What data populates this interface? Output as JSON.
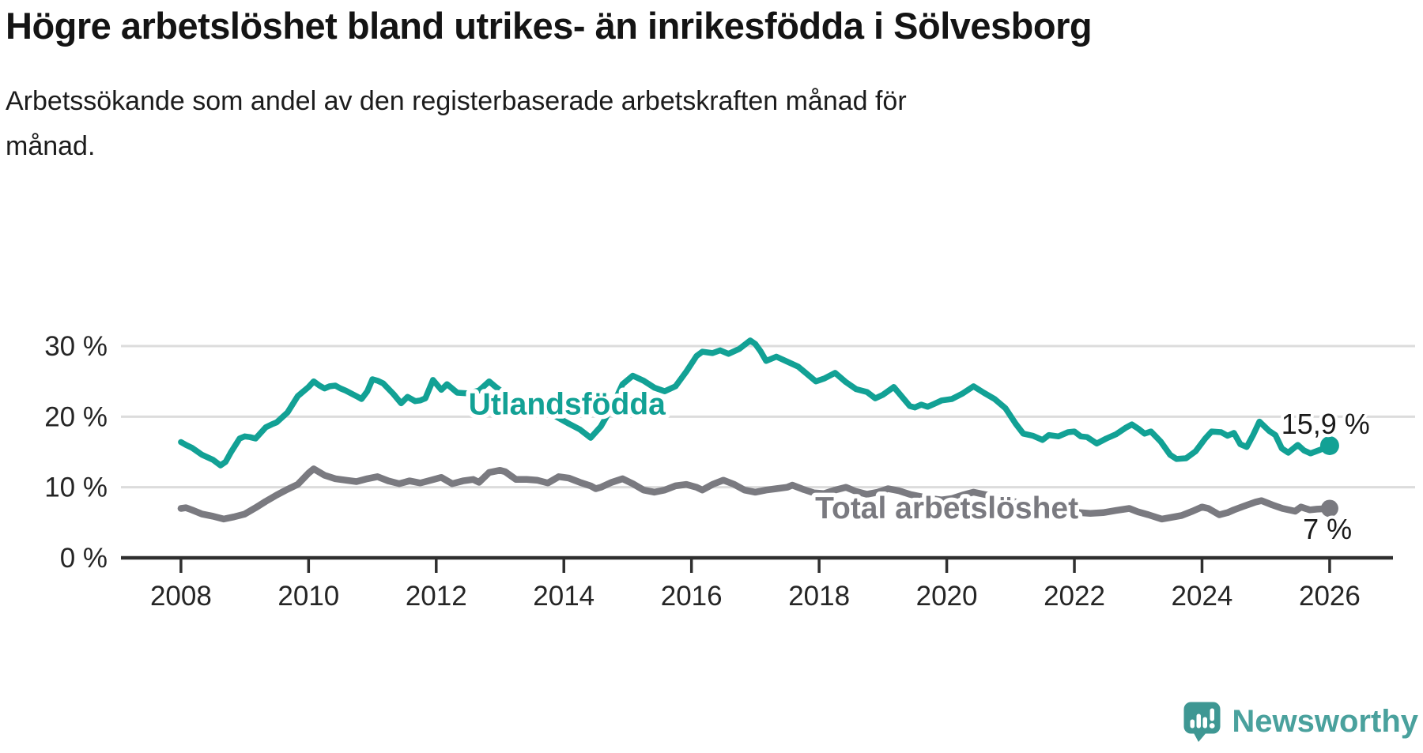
{
  "header": {
    "title": "Högre arbetslöshet bland utrikes- än inrikesfödda i Sölvesborg",
    "subtitle": "Arbetssökande som andel av den registerbaserade arbetskraften månad för månad."
  },
  "footer": {
    "brand": "Newsworthy"
  },
  "chart_data": {
    "type": "line",
    "title": "Högre arbetslöshet bland utrikes- än inrikesfödda i Sölvesborg",
    "subtitle": "Arbetssökande som andel av den registerbaserade arbetskraften månad för månad.",
    "unit": "%",
    "grid": true,
    "legend_position": "inline-labels",
    "xlim": [
      2007.06,
      2026.93
    ],
    "ylim": [
      0,
      30
    ],
    "grid_color": "#dcdcdc",
    "axis_color": "#2f2f2f",
    "tick_label_color": "#252525",
    "xticks": [
      {
        "year": 2008,
        "label": "2008"
      },
      {
        "year": 2010,
        "label": "2010"
      },
      {
        "year": 2012,
        "label": "2012"
      },
      {
        "year": 2014,
        "label": "2014"
      },
      {
        "year": 2016,
        "label": "2016"
      },
      {
        "year": 2018,
        "label": "2018"
      },
      {
        "year": 2020,
        "label": "2020"
      },
      {
        "year": 2022,
        "label": "2022"
      },
      {
        "year": 2024,
        "label": "2024"
      },
      {
        "year": 2026,
        "label": "2026"
      }
    ],
    "yticks": [
      {
        "value": 0,
        "label": "0 %"
      },
      {
        "value": 10,
        "label": "10 %"
      },
      {
        "value": 20,
        "label": "20 %"
      },
      {
        "value": 30,
        "label": "30 %"
      }
    ],
    "series": [
      {
        "id": "total-arbetsloshet",
        "name": "Total arbetslöshet",
        "color": "#7a7a80",
        "line_width": 8.5,
        "dot_radius": 11,
        "last_value_label": "7 %",
        "label": {
          "text": "Total arbetslöshet",
          "x": 2020.0,
          "y": 5.6,
          "anchor": "middle"
        },
        "end_label": {
          "text": "7 %",
          "x": 2026.35,
          "y": 2.7,
          "anchor": "end"
        },
        "points": [
          [
            2008.0,
            7.0
          ],
          [
            2008.08,
            7.1
          ],
          [
            2008.17,
            6.8
          ],
          [
            2008.33,
            6.2
          ],
          [
            2008.5,
            5.9
          ],
          [
            2008.67,
            5.5
          ],
          [
            2008.83,
            5.8
          ],
          [
            2009.0,
            6.2
          ],
          [
            2009.17,
            7.1
          ],
          [
            2009.33,
            8.0
          ],
          [
            2009.5,
            8.9
          ],
          [
            2009.67,
            9.7
          ],
          [
            2009.83,
            10.4
          ],
          [
            2010.0,
            12.0
          ],
          [
            2010.08,
            12.6
          ],
          [
            2010.25,
            11.7
          ],
          [
            2010.42,
            11.2
          ],
          [
            2010.58,
            11.0
          ],
          [
            2010.75,
            10.8
          ],
          [
            2010.92,
            11.2
          ],
          [
            2011.08,
            11.5
          ],
          [
            2011.25,
            10.9
          ],
          [
            2011.42,
            10.5
          ],
          [
            2011.58,
            10.9
          ],
          [
            2011.75,
            10.6
          ],
          [
            2011.92,
            11.0
          ],
          [
            2012.08,
            11.4
          ],
          [
            2012.25,
            10.5
          ],
          [
            2012.42,
            10.9
          ],
          [
            2012.58,
            11.1
          ],
          [
            2012.67,
            10.7
          ],
          [
            2012.83,
            12.1
          ],
          [
            2013.0,
            12.4
          ],
          [
            2013.08,
            12.2
          ],
          [
            2013.25,
            11.1
          ],
          [
            2013.42,
            11.1
          ],
          [
            2013.58,
            11.0
          ],
          [
            2013.75,
            10.6
          ],
          [
            2013.92,
            11.5
          ],
          [
            2014.08,
            11.3
          ],
          [
            2014.25,
            10.7
          ],
          [
            2014.42,
            10.2
          ],
          [
            2014.5,
            9.8
          ],
          [
            2014.58,
            10.0
          ],
          [
            2014.75,
            10.7
          ],
          [
            2014.92,
            11.2
          ],
          [
            2015.08,
            10.5
          ],
          [
            2015.25,
            9.6
          ],
          [
            2015.42,
            9.3
          ],
          [
            2015.58,
            9.6
          ],
          [
            2015.75,
            10.2
          ],
          [
            2015.92,
            10.4
          ],
          [
            2016.08,
            10.0
          ],
          [
            2016.17,
            9.6
          ],
          [
            2016.33,
            10.4
          ],
          [
            2016.5,
            11.0
          ],
          [
            2016.67,
            10.4
          ],
          [
            2016.83,
            9.6
          ],
          [
            2017.0,
            9.3
          ],
          [
            2017.17,
            9.6
          ],
          [
            2017.33,
            9.8
          ],
          [
            2017.5,
            10.0
          ],
          [
            2017.58,
            10.3
          ],
          [
            2017.75,
            9.7
          ],
          [
            2017.92,
            9.2
          ],
          [
            2018.08,
            9.1
          ],
          [
            2018.25,
            9.6
          ],
          [
            2018.42,
            10.0
          ],
          [
            2018.58,
            9.4
          ],
          [
            2018.75,
            9.0
          ],
          [
            2018.92,
            9.3
          ],
          [
            2019.08,
            9.8
          ],
          [
            2019.25,
            9.5
          ],
          [
            2019.42,
            9.0
          ],
          [
            2019.58,
            8.7
          ],
          [
            2019.75,
            8.4
          ],
          [
            2019.92,
            8.2
          ],
          [
            2020.08,
            8.4
          ],
          [
            2020.25,
            8.9
          ],
          [
            2020.42,
            9.3
          ],
          [
            2020.58,
            9.0
          ],
          [
            2020.75,
            8.7
          ],
          [
            2020.92,
            8.4
          ],
          [
            2021.08,
            7.9
          ],
          [
            2021.25,
            7.5
          ],
          [
            2021.42,
            7.1
          ],
          [
            2021.58,
            6.9
          ],
          [
            2021.75,
            6.7
          ],
          [
            2021.92,
            6.6
          ],
          [
            2022.08,
            6.4
          ],
          [
            2022.25,
            6.3
          ],
          [
            2022.45,
            6.4
          ],
          [
            2022.65,
            6.7
          ],
          [
            2022.86,
            7.0
          ],
          [
            2023.0,
            6.5
          ],
          [
            2023.16,
            6.1
          ],
          [
            2023.37,
            5.5
          ],
          [
            2023.5,
            5.7
          ],
          [
            2023.68,
            6.0
          ],
          [
            2023.85,
            6.6
          ],
          [
            2024.0,
            7.2
          ],
          [
            2024.1,
            7.0
          ],
          [
            2024.27,
            6.1
          ],
          [
            2024.4,
            6.4
          ],
          [
            2024.5,
            6.8
          ],
          [
            2024.65,
            7.3
          ],
          [
            2024.84,
            7.9
          ],
          [
            2024.93,
            8.1
          ],
          [
            2025.1,
            7.5
          ],
          [
            2025.26,
            7.0
          ],
          [
            2025.46,
            6.6
          ],
          [
            2025.55,
            7.2
          ],
          [
            2025.69,
            6.8
          ],
          [
            2025.8,
            6.9
          ],
          [
            2026.0,
            7.0
          ]
        ]
      },
      {
        "id": "utlandsfodda",
        "name": "Utlandsfödda",
        "color": "#12a195",
        "line_width": 7.5,
        "dot_radius": 12,
        "last_value_label": "15,9 %",
        "label": {
          "text": "Utlandsfödda",
          "x": 2014.05,
          "y": 20.3,
          "anchor": "middle"
        },
        "end_label": {
          "text": "15,9 %",
          "x": 2026.63,
          "y": 17.6,
          "anchor": "end"
        },
        "points": [
          [
            2008.0,
            16.4
          ],
          [
            2008.08,
            16.0
          ],
          [
            2008.17,
            15.6
          ],
          [
            2008.33,
            14.6
          ],
          [
            2008.5,
            13.9
          ],
          [
            2008.62,
            13.1
          ],
          [
            2008.7,
            13.6
          ],
          [
            2008.78,
            14.9
          ],
          [
            2008.92,
            16.9
          ],
          [
            2009.0,
            17.2
          ],
          [
            2009.08,
            17.1
          ],
          [
            2009.17,
            16.9
          ],
          [
            2009.33,
            18.5
          ],
          [
            2009.42,
            18.9
          ],
          [
            2009.5,
            19.2
          ],
          [
            2009.67,
            20.6
          ],
          [
            2009.83,
            22.9
          ],
          [
            2010.0,
            24.2
          ],
          [
            2010.08,
            25.0
          ],
          [
            2010.17,
            24.4
          ],
          [
            2010.25,
            24.0
          ],
          [
            2010.33,
            24.3
          ],
          [
            2010.42,
            24.4
          ],
          [
            2010.5,
            24.0
          ],
          [
            2010.58,
            23.7
          ],
          [
            2010.75,
            22.9
          ],
          [
            2010.83,
            22.5
          ],
          [
            2010.92,
            23.6
          ],
          [
            2011.0,
            25.3
          ],
          [
            2011.08,
            25.1
          ],
          [
            2011.17,
            24.7
          ],
          [
            2011.33,
            23.2
          ],
          [
            2011.45,
            21.9
          ],
          [
            2011.55,
            22.8
          ],
          [
            2011.67,
            22.2
          ],
          [
            2011.75,
            22.3
          ],
          [
            2011.83,
            22.6
          ],
          [
            2011.95,
            25.2
          ],
          [
            2012.08,
            23.8
          ],
          [
            2012.17,
            24.6
          ],
          [
            2012.33,
            23.4
          ],
          [
            2012.5,
            23.3
          ],
          [
            2012.67,
            23.7
          ],
          [
            2012.83,
            25.0
          ],
          [
            2012.92,
            24.3
          ],
          [
            2013.08,
            23.2
          ],
          [
            2013.25,
            22.2
          ],
          [
            2013.42,
            21.4
          ],
          [
            2013.55,
            21.8
          ],
          [
            2013.75,
            20.7
          ],
          [
            2013.92,
            19.8
          ],
          [
            2014.08,
            19.0
          ],
          [
            2014.25,
            18.2
          ],
          [
            2014.42,
            17.0
          ],
          [
            2014.58,
            18.6
          ],
          [
            2014.75,
            21.3
          ],
          [
            2014.92,
            24.6
          ],
          [
            2015.08,
            25.8
          ],
          [
            2015.25,
            25.1
          ],
          [
            2015.42,
            24.1
          ],
          [
            2015.58,
            23.6
          ],
          [
            2015.75,
            24.3
          ],
          [
            2015.92,
            26.4
          ],
          [
            2016.08,
            28.6
          ],
          [
            2016.17,
            29.2
          ],
          [
            2016.33,
            29.0
          ],
          [
            2016.45,
            29.4
          ],
          [
            2016.58,
            28.9
          ],
          [
            2016.75,
            29.6
          ],
          [
            2016.92,
            30.8
          ],
          [
            2017.0,
            30.3
          ],
          [
            2017.08,
            29.3
          ],
          [
            2017.17,
            27.9
          ],
          [
            2017.33,
            28.5
          ],
          [
            2017.5,
            27.8
          ],
          [
            2017.67,
            27.1
          ],
          [
            2017.83,
            25.9
          ],
          [
            2017.95,
            25.0
          ],
          [
            2018.08,
            25.4
          ],
          [
            2018.25,
            26.2
          ],
          [
            2018.42,
            24.9
          ],
          [
            2018.58,
            23.9
          ],
          [
            2018.75,
            23.5
          ],
          [
            2018.88,
            22.6
          ],
          [
            2019.0,
            23.1
          ],
          [
            2019.17,
            24.2
          ],
          [
            2019.3,
            22.8
          ],
          [
            2019.42,
            21.5
          ],
          [
            2019.5,
            21.3
          ],
          [
            2019.6,
            21.7
          ],
          [
            2019.7,
            21.4
          ],
          [
            2019.8,
            21.8
          ],
          [
            2019.92,
            22.3
          ],
          [
            2020.08,
            22.5
          ],
          [
            2020.25,
            23.3
          ],
          [
            2020.42,
            24.3
          ],
          [
            2020.58,
            23.4
          ],
          [
            2020.75,
            22.5
          ],
          [
            2020.92,
            21.2
          ],
          [
            2021.08,
            19.0
          ],
          [
            2021.2,
            17.6
          ],
          [
            2021.35,
            17.3
          ],
          [
            2021.5,
            16.7
          ],
          [
            2021.6,
            17.4
          ],
          [
            2021.75,
            17.2
          ],
          [
            2021.9,
            17.8
          ],
          [
            2022.0,
            17.9
          ],
          [
            2022.1,
            17.2
          ],
          [
            2022.2,
            17.1
          ],
          [
            2022.35,
            16.2
          ],
          [
            2022.5,
            16.9
          ],
          [
            2022.65,
            17.5
          ],
          [
            2022.8,
            18.4
          ],
          [
            2022.9,
            18.9
          ],
          [
            2023.0,
            18.3
          ],
          [
            2023.1,
            17.6
          ],
          [
            2023.2,
            17.9
          ],
          [
            2023.35,
            16.5
          ],
          [
            2023.5,
            14.6
          ],
          [
            2023.6,
            14.0
          ],
          [
            2023.75,
            14.1
          ],
          [
            2023.9,
            15.1
          ],
          [
            2024.05,
            16.9
          ],
          [
            2024.15,
            17.9
          ],
          [
            2024.3,
            17.8
          ],
          [
            2024.4,
            17.3
          ],
          [
            2024.5,
            17.7
          ],
          [
            2024.6,
            16.1
          ],
          [
            2024.7,
            15.7
          ],
          [
            2024.8,
            17.4
          ],
          [
            2024.9,
            19.3
          ],
          [
            2025.05,
            18.0
          ],
          [
            2025.15,
            17.4
          ],
          [
            2025.25,
            15.5
          ],
          [
            2025.35,
            14.9
          ],
          [
            2025.5,
            16.0
          ],
          [
            2025.6,
            15.2
          ],
          [
            2025.7,
            14.8
          ],
          [
            2025.85,
            15.3
          ],
          [
            2026.0,
            15.9
          ]
        ]
      }
    ]
  }
}
